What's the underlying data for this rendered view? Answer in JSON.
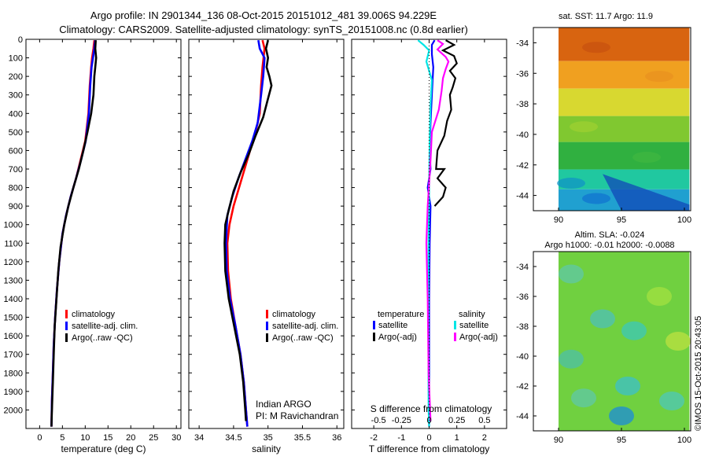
{
  "header": {
    "title_line1": "Argo profile: IN 2901344_136 08-Oct-2015 20151012_481 39.006S 94.229E",
    "title_line2": "Climatology: CARS2009. Satellite-adjusted climatology: synTS_20151008.nc (0.8d earlier)"
  },
  "credit": {
    "line1": "Indian ARGO",
    "line2": "PI: M Ravichandran",
    "watermark": "©IMOS 15-Oct-2015 20:43:05"
  },
  "colors": {
    "climatology": "#ff0000",
    "satellite": "#0000ff",
    "argo": "#000000",
    "sat_salinity": "#00e5e5",
    "argo_salinity": "#ff00ff"
  },
  "chart_data": [
    {
      "id": "temperature",
      "type": "line",
      "xlabel": "temperature (deg C)",
      "ylabel": "",
      "xlim": [
        -3,
        31
      ],
      "xticks": [
        "0",
        "5",
        "10",
        "15",
        "20",
        "25",
        "30"
      ],
      "ylim": [
        2100,
        0
      ],
      "yticks": [
        "0",
        "100",
        "200",
        "300",
        "400",
        "500",
        "600",
        "700",
        "800",
        "900",
        "1000",
        "1100",
        "1200",
        "1300",
        "1400",
        "1500",
        "1600",
        "1700",
        "1800",
        "1900",
        "2000"
      ],
      "legend": [
        "climatology",
        "satellite-adj. clim.",
        "Argo(..raw -QC)"
      ],
      "series": [
        {
          "name": "climatology",
          "color": "#ff0000",
          "points": [
            [
              12,
              5
            ],
            [
              11.8,
              50
            ],
            [
              11.5,
              100
            ],
            [
              11.3,
              150
            ],
            [
              11,
              250
            ],
            [
              10.7,
              400
            ],
            [
              10,
              550
            ],
            [
              9,
              650
            ],
            [
              8,
              750
            ],
            [
              6.8,
              850
            ],
            [
              5.8,
              950
            ],
            [
              5,
              1050
            ],
            [
              4.3,
              1200
            ],
            [
              3.8,
              1350
            ],
            [
              3.4,
              1500
            ],
            [
              3.1,
              1650
            ],
            [
              2.9,
              1800
            ],
            [
              2.7,
              1950
            ],
            [
              2.6,
              2090
            ]
          ]
        },
        {
          "name": "satellite-adj. clim.",
          "color": "#0000ff",
          "points": [
            [
              12.2,
              5
            ],
            [
              12,
              50
            ],
            [
              11.7,
              100
            ],
            [
              11.4,
              150
            ],
            [
              11.1,
              250
            ],
            [
              10.8,
              400
            ],
            [
              10.1,
              550
            ],
            [
              9.1,
              650
            ],
            [
              8,
              750
            ],
            [
              6.8,
              850
            ],
            [
              5.8,
              950
            ],
            [
              5,
              1050
            ],
            [
              4.3,
              1200
            ],
            [
              3.8,
              1350
            ],
            [
              3.4,
              1500
            ],
            [
              3.1,
              1650
            ],
            [
              2.9,
              1800
            ],
            [
              2.7,
              1950
            ],
            [
              2.6,
              2090
            ]
          ]
        },
        {
          "name": "Argo(..raw -QC)",
          "color": "#000000",
          "points": [
            [
              12.3,
              5
            ],
            [
              12.2,
              50
            ],
            [
              12.4,
              100
            ],
            [
              12.2,
              150
            ],
            [
              12,
              200
            ],
            [
              11.8,
              300
            ],
            [
              11.3,
              400
            ],
            [
              10.5,
              500
            ],
            [
              9.6,
              600
            ],
            [
              8.6,
              700
            ],
            [
              7.4,
              800
            ],
            [
              6.3,
              900
            ],
            [
              5.4,
              1000
            ],
            [
              4.6,
              1120
            ],
            [
              4.1,
              1250
            ],
            [
              3.7,
              1400
            ],
            [
              3.3,
              1550
            ],
            [
              3.1,
              1700
            ],
            [
              2.9,
              1850
            ],
            [
              2.7,
              2000
            ],
            [
              2.6,
              2090
            ]
          ]
        }
      ]
    },
    {
      "id": "salinity",
      "type": "line",
      "xlabel": "salinity",
      "ylabel": "",
      "xlim": [
        33.85,
        36.1
      ],
      "xticks": [
        "34",
        "34.5",
        "35",
        "35.5",
        "36"
      ],
      "ylim": [
        2100,
        0
      ],
      "legend": [
        "climatology",
        "satellite-adj. clim.",
        "Argo(..raw -QC)"
      ],
      "series": [
        {
          "name": "climatology",
          "color": "#ff0000",
          "points": [
            [
              34.92,
              5
            ],
            [
              34.95,
              50
            ],
            [
              34.92,
              150
            ],
            [
              34.9,
              250
            ],
            [
              34.88,
              400
            ],
            [
              34.82,
              500
            ],
            [
              34.74,
              600
            ],
            [
              34.66,
              700
            ],
            [
              34.58,
              800
            ],
            [
              34.5,
              900
            ],
            [
              34.44,
              1000
            ],
            [
              34.41,
              1100
            ],
            [
              34.42,
              1250
            ],
            [
              34.46,
              1400
            ],
            [
              34.53,
              1550
            ],
            [
              34.6,
              1700
            ],
            [
              34.65,
              1850
            ],
            [
              34.68,
              2000
            ],
            [
              34.7,
              2090
            ]
          ]
        },
        {
          "name": "satellite-adj. clim.",
          "color": "#0000ff",
          "points": [
            [
              34.86,
              5
            ],
            [
              34.88,
              50
            ],
            [
              34.95,
              100
            ],
            [
              34.93,
              200
            ],
            [
              34.9,
              300
            ],
            [
              34.85,
              450
            ],
            [
              34.77,
              550
            ],
            [
              34.67,
              650
            ],
            [
              34.57,
              750
            ],
            [
              34.48,
              850
            ],
            [
              34.41,
              950
            ],
            [
              34.39,
              1100
            ],
            [
              34.4,
              1250
            ],
            [
              34.45,
              1400
            ],
            [
              34.53,
              1550
            ],
            [
              34.6,
              1700
            ],
            [
              34.65,
              1850
            ],
            [
              34.68,
              2000
            ],
            [
              34.7,
              2090
            ]
          ]
        },
        {
          "name": "Argo(..raw -QC)",
          "color": "#000000",
          "points": [
            [
              35.0,
              5
            ],
            [
              34.97,
              50
            ],
            [
              35.0,
              100
            ],
            [
              34.98,
              150
            ],
            [
              35.02,
              200
            ],
            [
              35.05,
              250
            ],
            [
              35.0,
              320
            ],
            [
              34.93,
              420
            ],
            [
              34.82,
              520
            ],
            [
              34.72,
              620
            ],
            [
              34.6,
              720
            ],
            [
              34.5,
              820
            ],
            [
              34.43,
              920
            ],
            [
              34.38,
              1000
            ],
            [
              34.37,
              1100
            ],
            [
              34.38,
              1250
            ],
            [
              34.43,
              1400
            ],
            [
              34.51,
              1550
            ],
            [
              34.59,
              1700
            ],
            [
              34.64,
              1850
            ],
            [
              34.67,
              2000
            ],
            [
              34.68,
              2060
            ]
          ]
        }
      ]
    },
    {
      "id": "difference",
      "type": "line",
      "xlabel": "T difference from climatology",
      "xlabel_top": "S difference from climatology",
      "xlim": [
        -2.8,
        2.8
      ],
      "xticks": [
        "-2",
        "-1",
        "0",
        "1",
        "2"
      ],
      "xticks_top": [
        "-0.5",
        "-0.25",
        "0",
        "0.25",
        "0.5"
      ],
      "ylim": [
        2100,
        0
      ],
      "legend_titles": [
        "temperature",
        "salinity"
      ],
      "legend": [
        "satellite",
        "Argo(-adj)",
        "satellite",
        "Argo(-adj)"
      ],
      "series": [
        {
          "name": "satellite",
          "color": "#0000ff",
          "points": [
            [
              0.2,
              5
            ],
            [
              0.1,
              30
            ],
            [
              0.1,
              80
            ],
            [
              0.15,
              150
            ],
            [
              0.1,
              300
            ],
            [
              0.05,
              450
            ],
            [
              0.02,
              600
            ],
            [
              0.05,
              700
            ],
            [
              -0.05,
              800
            ],
            [
              0.05,
              900
            ],
            [
              0.02,
              1100
            ],
            [
              0.0,
              1400
            ],
            [
              0.0,
              1700
            ],
            [
              0.0,
              2000
            ],
            [
              0.0,
              2090
            ]
          ]
        },
        {
          "name": "Argo(-adj)",
          "color": "#000000",
          "points": [
            [
              0.6,
              5
            ],
            [
              0.9,
              30
            ],
            [
              0.5,
              60
            ],
            [
              0.9,
              90
            ],
            [
              1.0,
              130
            ],
            [
              0.75,
              170
            ],
            [
              0.95,
              210
            ],
            [
              0.85,
              260
            ],
            [
              0.75,
              300
            ],
            [
              0.8,
              380
            ],
            [
              0.65,
              440
            ],
            [
              0.55,
              520
            ],
            [
              0.3,
              600
            ],
            [
              0.25,
              700
            ],
            [
              0.55,
              700
            ],
            [
              0.3,
              750
            ],
            [
              0.6,
              800
            ],
            [
              0.5,
              850
            ],
            [
              0.2,
              900
            ]
          ]
        },
        {
          "name": "satellite",
          "color": "#00e5e5",
          "points": [
            [
              -0.4,
              5
            ],
            [
              -0.2,
              30
            ],
            [
              0.0,
              60
            ],
            [
              -0.1,
              120
            ],
            [
              0.1,
              220
            ],
            [
              0.05,
              350
            ],
            [
              0.02,
              550
            ],
            [
              0.0,
              800
            ],
            [
              -0.02,
              1100
            ],
            [
              -0.03,
              1500
            ],
            [
              -0.02,
              2000
            ],
            [
              0.0,
              2090
            ]
          ]
        },
        {
          "name": "Argo(-adj)",
          "color": "#ff00ff",
          "points": [
            [
              0.3,
              5
            ],
            [
              0.5,
              25
            ],
            [
              0.3,
              55
            ],
            [
              0.6,
              95
            ],
            [
              0.7,
              120
            ],
            [
              0.6,
              160
            ],
            [
              0.5,
              210
            ],
            [
              0.45,
              280
            ],
            [
              0.35,
              380
            ],
            [
              0.1,
              500
            ],
            [
              0.05,
              650
            ],
            [
              -0.05,
              900
            ],
            [
              -0.1,
              1100
            ],
            [
              -0.05,
              1400
            ],
            [
              -0.02,
              1800
            ],
            [
              0.05,
              2060
            ]
          ]
        }
      ]
    },
    {
      "id": "sst_map",
      "type": "heatmap",
      "title": "sat. SST: 11.7  Argo: 11.9",
      "xticks": [
        "90",
        "95",
        "100"
      ],
      "yticks": [
        "-34",
        "-36",
        "-38",
        "-40",
        "-42",
        "-44"
      ],
      "xlim": [
        88,
        100.5
      ],
      "ylim": [
        -45,
        -33
      ],
      "bands": [
        {
          "lat_from": -33,
          "lat_to": -35.2,
          "color": "#d86410"
        },
        {
          "lat_from": -35.2,
          "lat_to": -37,
          "color": "#f0a020"
        },
        {
          "lat_from": -37,
          "lat_to": -38.8,
          "color": "#d8d830"
        },
        {
          "lat_from": -38.8,
          "lat_to": -40.5,
          "color": "#80c830"
        },
        {
          "lat_from": -40.5,
          "lat_to": -42.3,
          "color": "#30b040"
        },
        {
          "lat_from": -42.3,
          "lat_to": -43.6,
          "color": "#20c8a0"
        },
        {
          "lat_from": -43.6,
          "lat_to": -45,
          "color": "#20a0d0"
        }
      ]
    },
    {
      "id": "sla_map",
      "type": "heatmap",
      "title_line1": "Altim. SLA: -0.024",
      "title_line2": "Argo h1000: -0.01 h2000: -0.0088",
      "xticks": [
        "90",
        "95",
        "100"
      ],
      "yticks": [
        "-34",
        "-36",
        "-38",
        "-40",
        "-42",
        "-44"
      ],
      "xlim": [
        88,
        100.5
      ],
      "ylim": [
        -45,
        -33
      ],
      "base_color": "#70d040"
    }
  ]
}
